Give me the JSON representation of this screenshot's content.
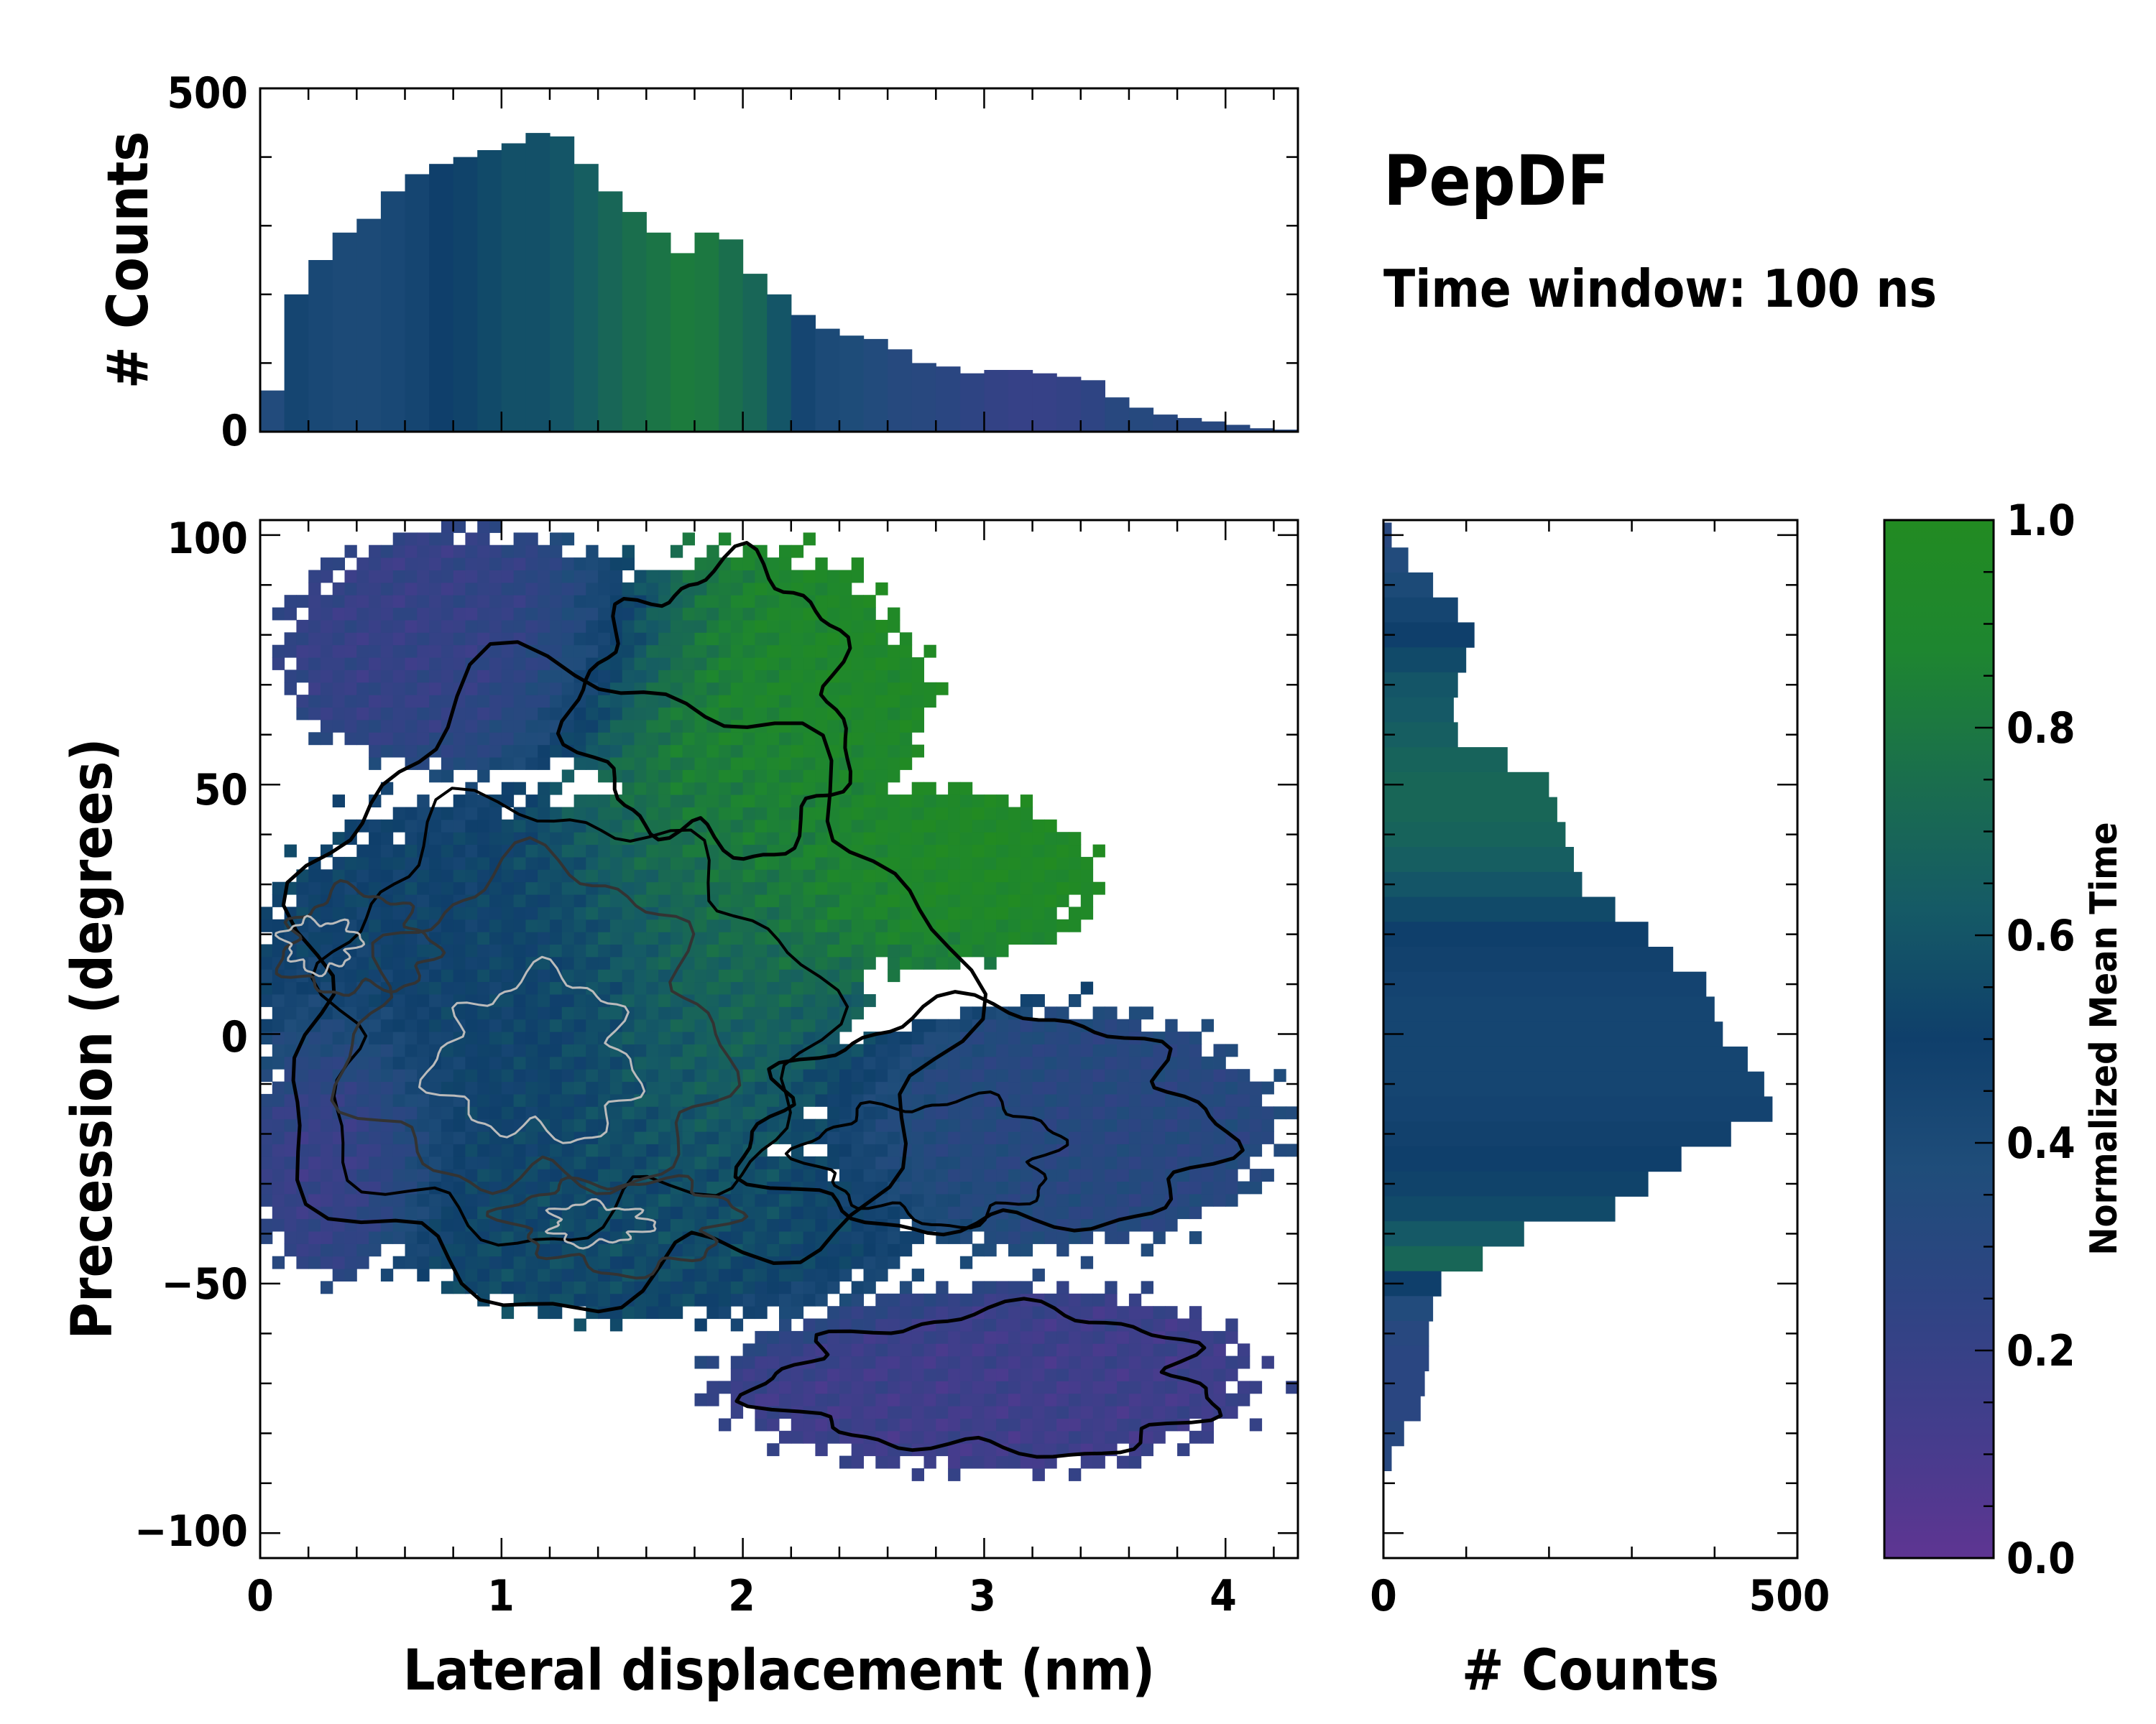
{
  "title": "PepDF",
  "subtitle": "Time window: 100 ns",
  "colors": {
    "cmap": [
      "#5e3592",
      "#433d8c",
      "#2e4483",
      "#1f4d7a",
      "#0f3f6b",
      "#155a66",
      "#1a6e4d",
      "#1e8630",
      "#228b22"
    ],
    "contour_outer": "#000000",
    "contour_mid": "#333333",
    "contour_inner": "#bbbbbb"
  },
  "chart_data": [
    {
      "id": "top_histogram",
      "type": "bar",
      "ylabel": "# Counts",
      "xlabel": "",
      "xlim": [
        0,
        4.3
      ],
      "ylim": [
        0,
        500
      ],
      "yticks": [
        "0",
        "500"
      ],
      "color_by": "Normalized Mean Time",
      "x": [
        0.05,
        0.15,
        0.25,
        0.35,
        0.45,
        0.55,
        0.65,
        0.75,
        0.85,
        0.95,
        1.05,
        1.15,
        1.25,
        1.35,
        1.45,
        1.55,
        1.65,
        1.75,
        1.85,
        1.95,
        2.05,
        2.15,
        2.25,
        2.35,
        2.45,
        2.55,
        2.65,
        2.75,
        2.85,
        2.95,
        3.05,
        3.15,
        3.25,
        3.35,
        3.45,
        3.55,
        3.65,
        3.75,
        3.85,
        3.95,
        4.05,
        4.15,
        4.25
      ],
      "values": [
        60,
        200,
        250,
        290,
        310,
        350,
        375,
        390,
        400,
        410,
        420,
        435,
        430,
        390,
        350,
        320,
        290,
        260,
        290,
        280,
        230,
        200,
        170,
        150,
        140,
        135,
        120,
        100,
        95,
        85,
        90,
        90,
        85,
        80,
        75,
        50,
        35,
        25,
        20,
        15,
        10,
        5,
        3
      ],
      "mean_time": [
        0.35,
        0.45,
        0.42,
        0.4,
        0.4,
        0.42,
        0.45,
        0.5,
        0.52,
        0.55,
        0.58,
        0.58,
        0.6,
        0.65,
        0.7,
        0.75,
        0.78,
        0.82,
        0.8,
        0.75,
        0.7,
        0.6,
        0.45,
        0.4,
        0.38,
        0.35,
        0.32,
        0.3,
        0.28,
        0.25,
        0.22,
        0.2,
        0.2,
        0.22,
        0.25,
        0.3,
        0.32,
        0.3,
        0.3,
        0.3,
        0.3,
        0.3,
        0.3
      ]
    },
    {
      "id": "main_heatmap",
      "type": "heatmap",
      "xlabel": "Lateral displacement (nm)",
      "ylabel": "Precession (degrees)",
      "xlim": [
        0,
        4.3
      ],
      "ylim": [
        -105,
        103
      ],
      "xticks": [
        "0",
        "1",
        "2",
        "3",
        "4"
      ],
      "yticks": [
        "100",
        "50",
        "0",
        "−50",
        "−100"
      ],
      "color_by": "Normalized Mean Time",
      "regions": [
        {
          "name": "upper-left cluster",
          "cx": 0.9,
          "cy": 75,
          "rx": 0.7,
          "ry": 20,
          "mean_time": 0.2
        },
        {
          "name": "upper-middle green",
          "cx": 2.0,
          "cy": 65,
          "rx": 0.6,
          "ry": 25,
          "mean_time": 0.95
        },
        {
          "name": "right green lobe",
          "cx": 2.7,
          "cy": 30,
          "rx": 0.6,
          "ry": 15,
          "mean_time": 0.95
        },
        {
          "name": "central core",
          "cx": 1.1,
          "cy": 5,
          "rx": 1.0,
          "ry": 35,
          "mean_time": 0.5
        },
        {
          "name": "central green band",
          "cx": 1.9,
          "cy": 20,
          "rx": 0.5,
          "ry": 40,
          "mean_time": 0.8
        },
        {
          "name": "lower-left purple",
          "cx": 0.3,
          "cy": -25,
          "rx": 0.3,
          "ry": 20,
          "mean_time": 0.1
        },
        {
          "name": "lower band",
          "cx": 1.6,
          "cy": -40,
          "rx": 0.9,
          "ry": 15,
          "mean_time": 0.55
        },
        {
          "name": "right arm",
          "cx": 3.2,
          "cy": -20,
          "rx": 0.8,
          "ry": 20,
          "mean_time": 0.3
        },
        {
          "name": "bottom arm",
          "cx": 3.0,
          "cy": -70,
          "rx": 0.9,
          "ry": 15,
          "mean_time": 0.15
        }
      ],
      "contours": [
        {
          "level": "outer",
          "color": "#000000",
          "center": [
            1.4,
            5
          ]
        },
        {
          "level": "mid",
          "color": "#333333",
          "center": [
            1.2,
            0
          ]
        },
        {
          "level": "inner",
          "color": "#bbbbbb",
          "center": [
            1.1,
            -5
          ]
        }
      ]
    },
    {
      "id": "right_histogram",
      "type": "bar",
      "orientation": "horizontal",
      "xlabel": "# Counts",
      "xlim": [
        0,
        500
      ],
      "xticks": [
        "0",
        "500"
      ],
      "ylim": [
        -105,
        103
      ],
      "color_by": "Normalized Mean Time",
      "y": [
        100,
        95,
        90,
        85,
        80,
        75,
        70,
        65,
        60,
        55,
        50,
        45,
        40,
        35,
        30,
        25,
        20,
        15,
        10,
        5,
        0,
        -5,
        -10,
        -15,
        -20,
        -25,
        -30,
        -35,
        -40,
        -45,
        -50,
        -55,
        -60,
        -65,
        -70,
        -75,
        -80,
        -85
      ],
      "values": [
        10,
        30,
        60,
        90,
        110,
        100,
        90,
        85,
        90,
        150,
        200,
        210,
        220,
        230,
        240,
        280,
        320,
        350,
        390,
        400,
        410,
        440,
        460,
        470,
        420,
        360,
        320,
        280,
        170,
        120,
        70,
        60,
        55,
        55,
        50,
        45,
        25,
        10
      ],
      "mean_time": [
        0.3,
        0.35,
        0.4,
        0.45,
        0.5,
        0.55,
        0.6,
        0.62,
        0.65,
        0.68,
        0.7,
        0.7,
        0.68,
        0.65,
        0.6,
        0.55,
        0.5,
        0.48,
        0.46,
        0.45,
        0.45,
        0.45,
        0.45,
        0.46,
        0.48,
        0.5,
        0.52,
        0.55,
        0.62,
        0.7,
        0.5,
        0.35,
        0.3,
        0.28,
        0.28,
        0.28,
        0.3,
        0.3
      ]
    },
    {
      "id": "colorbar",
      "type": "colorbar",
      "label": "Normalized Mean Time",
      "range": [
        0.0,
        1.0
      ],
      "ticks": [
        "0.0",
        "0.2",
        "0.4",
        "0.6",
        "0.8",
        "1.0"
      ]
    }
  ]
}
